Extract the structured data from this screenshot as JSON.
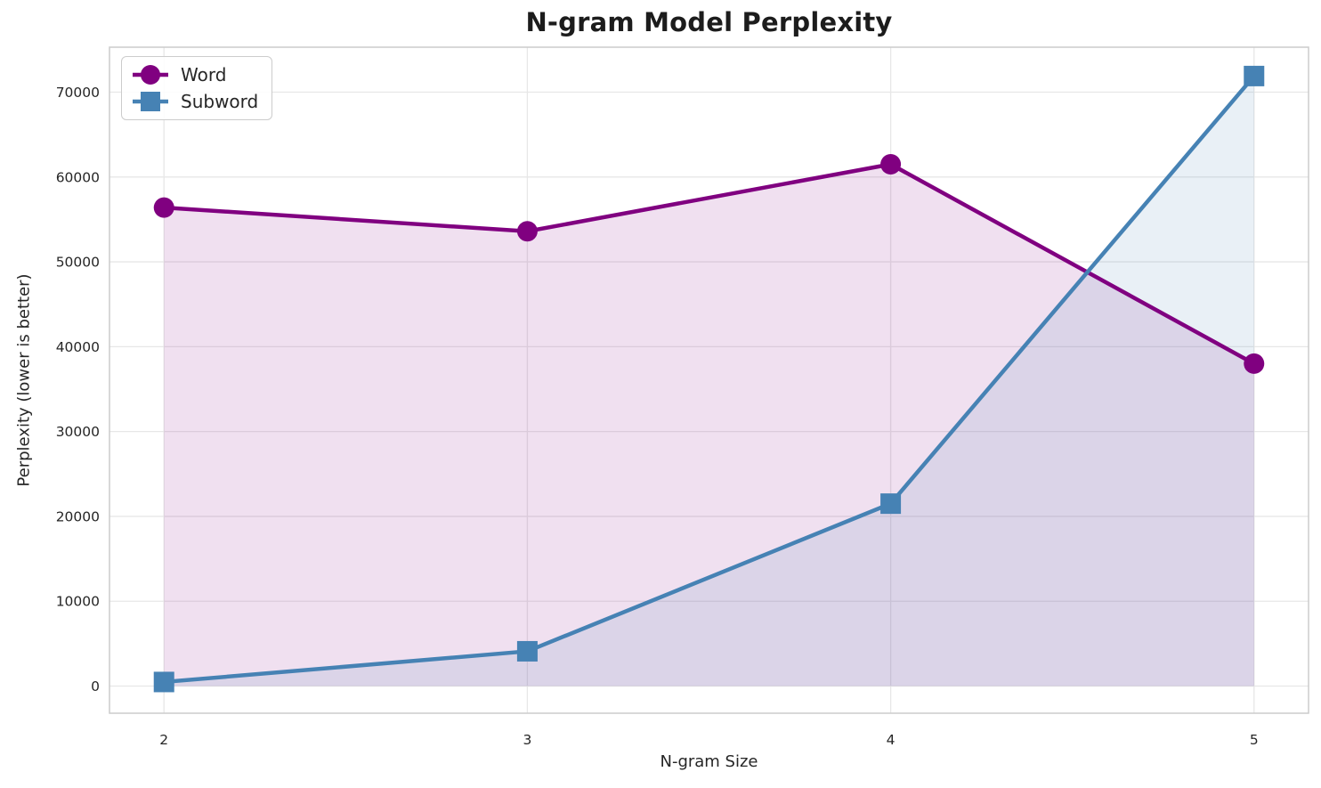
{
  "chart_data": {
    "type": "line",
    "title": "N-gram Model Perplexity",
    "xlabel": "N-gram Size",
    "ylabel": "Perplexity (lower is better)",
    "x": [
      2,
      3,
      4,
      5
    ],
    "series": [
      {
        "name": "Word",
        "marker": "circle",
        "color": "#800080",
        "values": [
          56400,
          53600,
          61500,
          38000
        ]
      },
      {
        "name": "Subword",
        "marker": "square",
        "color": "#4682B4",
        "values": [
          480,
          4100,
          21500,
          71900
        ]
      }
    ],
    "fill_to_baseline": true,
    "fill_baseline": 0,
    "fill_alpha": 0.12,
    "xlim": [
      1.85,
      5.15
    ],
    "ylim": [
      -3200,
      75300
    ],
    "xticks": [
      2,
      3,
      4,
      5
    ],
    "xtick_labels": [
      "2",
      "3",
      "4",
      "5"
    ],
    "yticks": [
      0,
      10000,
      20000,
      30000,
      40000,
      50000,
      60000,
      70000
    ],
    "ytick_labels": [
      "0",
      "10000",
      "20000",
      "30000",
      "40000",
      "50000",
      "60000",
      "70000"
    ],
    "grid": true,
    "legend_position": "upper-left",
    "colors": {
      "grid": "#e7e7e7",
      "spine": "#cccccc",
      "tick_text": "#262626",
      "title_text": "#1c1c1c",
      "background": "#ffffff"
    }
  }
}
